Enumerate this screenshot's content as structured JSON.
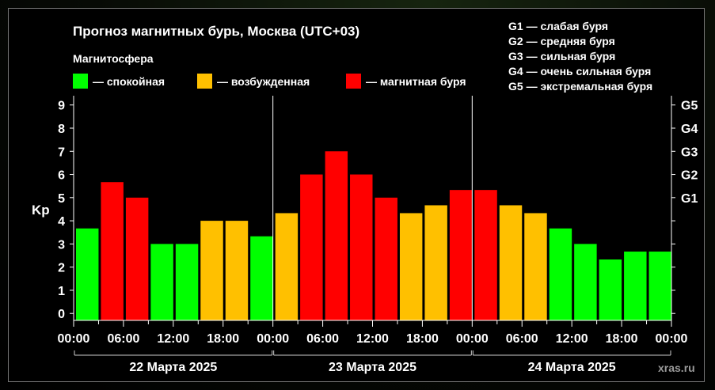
{
  "title": "Прогноз магнитных бурь, Москва (UTC+03)",
  "legend": {
    "heading": "Магнитосфера",
    "items": [
      {
        "label": "— спокойная",
        "color": "#00ff00"
      },
      {
        "label": "— возбужденная",
        "color": "#ffc000"
      },
      {
        "label": "— магнитная буря",
        "color": "#ff0000"
      }
    ]
  },
  "storm_levels": [
    "G1 — слабая буря",
    "G2 — средняя буря",
    "G3 — сильная буря",
    "G4 — очень сильная буря",
    "G5 — экстремальная буря"
  ],
  "branding": "xras.ru",
  "chart_data": {
    "type": "bar",
    "ylabel": "Kp",
    "ylim": [
      -0.3,
      9.4
    ],
    "y_ticks": [
      "0",
      "1",
      "2",
      "3",
      "4",
      "5",
      "6",
      "7",
      "8",
      "9"
    ],
    "right_ticks": [
      {
        "label": "G1",
        "kp": 5
      },
      {
        "label": "G2",
        "kp": 6
      },
      {
        "label": "G3",
        "kp": 7
      },
      {
        "label": "G4",
        "kp": 8
      },
      {
        "label": "G5",
        "kp": 9
      }
    ],
    "x_tick_labels": [
      "00:00",
      "06:00",
      "12:00",
      "18:00",
      "00:00",
      "06:00",
      "12:00",
      "18:00",
      "00:00",
      "06:00",
      "12:00",
      "18:00",
      "00:00"
    ],
    "days": [
      "22 Марта 2025",
      "23 Марта 2025",
      "24 Марта 2025"
    ],
    "values": [
      3.67,
      5.67,
      5.0,
      3.0,
      3.0,
      4.0,
      4.0,
      3.33,
      4.33,
      6.0,
      7.0,
      6.0,
      5.0,
      4.33,
      4.67,
      5.33,
      5.33,
      4.67,
      4.33,
      3.67,
      3.0,
      2.33,
      2.67,
      2.67
    ],
    "colors": {
      "quiet": "#00ff00",
      "active": "#ffc000",
      "storm": "#ff0000"
    }
  }
}
